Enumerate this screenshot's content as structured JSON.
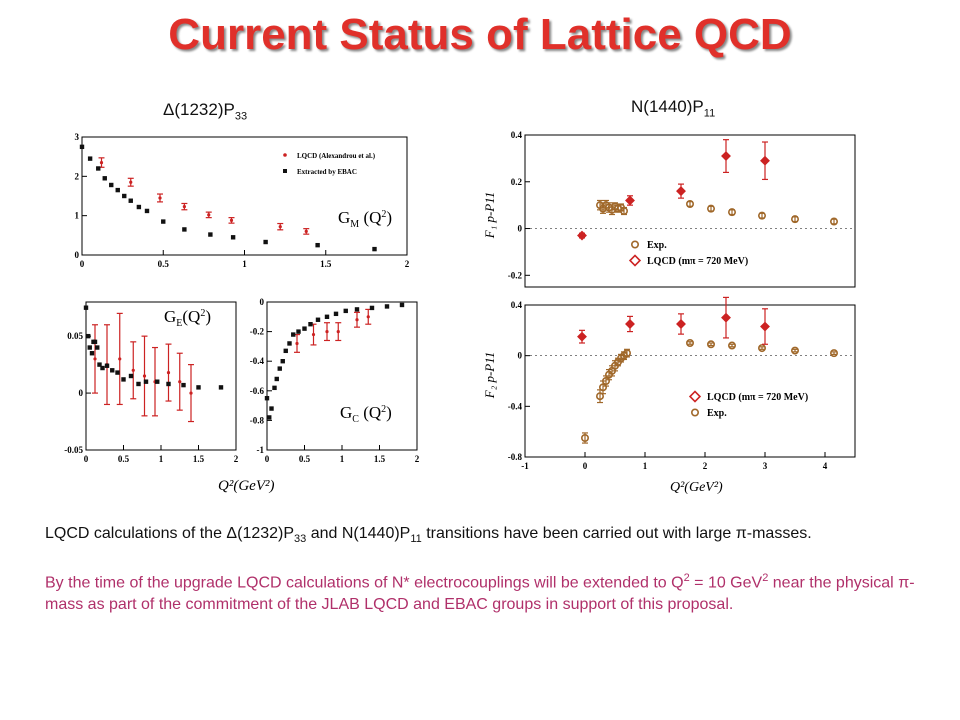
{
  "slide": {
    "title": "Current Status of Lattice QCD",
    "left_heading": "Δ(1232)P",
    "left_heading_sub": "33",
    "right_heading": "N(1440)P",
    "right_heading_sub": "11",
    "left_xlabel": "Q²(GeV²)",
    "right_xlabel": "Q²(GeV²)",
    "p1_a": "LQCD calculations of the ",
    "p1_b": "Δ(1232)P",
    "p1_b_sub": "33",
    "p1_c": " and N(1440)P",
    "p1_c_sub": "11",
    "p1_d": " transitions have been carried out with large ",
    "p1_e": "π",
    "p1_f": "-masses.",
    "p2_a": "By the time of the upgrade LQCD calculations of N* electrocouplings will be extended to Q",
    "p2_a_sup": "2",
    "p2_b": " = 10 GeV",
    "p2_b_sup": "2",
    "p2_c": " near the physical ",
    "p2_d": "π",
    "p2_e": "-mass as part of the commitment of the JLAB LQCD and EBAC groups in support of this proposal."
  },
  "colors": {
    "title": "#e0302a",
    "lqcd": "#cc2222",
    "ebac": "#111111",
    "exp": "#a0682a",
    "p2": "#b0306a"
  },
  "chart_data": [
    {
      "id": "gm",
      "type": "scatter",
      "label": "G_M (Q²)",
      "xlim": [
        0,
        2
      ],
      "ylim": [
        0,
        3
      ],
      "xticks": [
        "0",
        "0.5",
        "1",
        "1.5",
        "2"
      ],
      "yticks": [
        "0",
        "1",
        "2",
        "3"
      ],
      "legend": [
        "LQCD (Alexandrou et al.)",
        "Extracted by EBAC"
      ],
      "series": [
        {
          "name": "LQCD (Alexandrou et al.)",
          "points": [
            [
              0.12,
              2.35,
              0.12
            ],
            [
              0.3,
              1.85,
              0.1
            ],
            [
              0.48,
              1.45,
              0.1
            ],
            [
              0.63,
              1.23,
              0.08
            ],
            [
              0.78,
              1.02,
              0.07
            ],
            [
              0.92,
              0.88,
              0.07
            ],
            [
              1.22,
              0.72,
              0.08
            ],
            [
              1.38,
              0.6,
              0.07
            ]
          ]
        },
        {
          "name": "Extracted by EBAC",
          "points": [
            [
              0.0,
              2.75
            ],
            [
              0.05,
              2.45
            ],
            [
              0.1,
              2.2
            ],
            [
              0.14,
              1.95
            ],
            [
              0.18,
              1.78
            ],
            [
              0.22,
              1.65
            ],
            [
              0.26,
              1.5
            ],
            [
              0.3,
              1.38
            ],
            [
              0.35,
              1.22
            ],
            [
              0.4,
              1.12
            ],
            [
              0.5,
              0.85
            ],
            [
              0.63,
              0.65
            ],
            [
              0.79,
              0.52
            ],
            [
              0.93,
              0.45
            ],
            [
              1.13,
              0.33
            ],
            [
              1.45,
              0.25
            ],
            [
              1.8,
              0.15
            ]
          ]
        }
      ]
    },
    {
      "id": "ge",
      "type": "scatter",
      "label": "G_E (Q²)",
      "xlim": [
        0,
        2
      ],
      "ylim": [
        -0.05,
        0.08
      ],
      "xticks": [
        "0",
        "0.5",
        "1",
        "1.5",
        "2"
      ],
      "yticks": [
        "-0.05",
        "0",
        "0.05"
      ],
      "series": [
        {
          "name": "LQCD",
          "points": [
            [
              0.12,
              0.03,
              0.03
            ],
            [
              0.28,
              0.025,
              0.035
            ],
            [
              0.45,
              0.03,
              0.04
            ],
            [
              0.63,
              0.02,
              0.025
            ],
            [
              0.78,
              0.015,
              0.035
            ],
            [
              0.92,
              0.01,
              0.03
            ],
            [
              1.1,
              0.018,
              0.025
            ],
            [
              1.25,
              0.01,
              0.025
            ],
            [
              1.4,
              0.0,
              0.025
            ]
          ]
        },
        {
          "name": "EBAC",
          "points": [
            [
              0.0,
              0.075
            ],
            [
              0.03,
              0.05
            ],
            [
              0.05,
              0.04
            ],
            [
              0.08,
              0.035
            ],
            [
              0.1,
              0.045
            ],
            [
              0.12,
              0.045
            ],
            [
              0.15,
              0.04
            ],
            [
              0.18,
              0.025
            ],
            [
              0.22,
              0.022
            ],
            [
              0.28,
              0.024
            ],
            [
              0.35,
              0.02
            ],
            [
              0.42,
              0.018
            ],
            [
              0.5,
              0.012
            ],
            [
              0.6,
              0.015
            ],
            [
              0.7,
              0.008
            ],
            [
              0.8,
              0.01
            ],
            [
              0.95,
              0.01
            ],
            [
              1.1,
              0.008
            ],
            [
              1.3,
              0.007
            ],
            [
              1.5,
              0.005
            ],
            [
              1.8,
              0.005
            ]
          ]
        }
      ]
    },
    {
      "id": "gc",
      "type": "scatter",
      "label": "G_C (Q²)",
      "xlim": [
        0,
        2
      ],
      "ylim": [
        -1,
        0
      ],
      "xticks": [
        "0",
        "0.5",
        "1",
        "1.5",
        "2"
      ],
      "yticks": [
        "-1",
        "-0.8",
        "-0.6",
        "-0.4",
        "-0.2",
        "0"
      ],
      "series": [
        {
          "name": "LQCD",
          "points": [
            [
              0.4,
              -0.28,
              0.06
            ],
            [
              0.62,
              -0.22,
              0.07
            ],
            [
              0.8,
              -0.2,
              0.06
            ],
            [
              0.95,
              -0.2,
              0.06
            ],
            [
              1.2,
              -0.12,
              0.05
            ],
            [
              1.35,
              -0.1,
              0.05
            ]
          ]
        },
        {
          "name": "EBAC",
          "points": [
            [
              0.0,
              -0.65
            ],
            [
              0.03,
              -0.78
            ],
            [
              0.06,
              -0.72
            ],
            [
              0.1,
              -0.58
            ],
            [
              0.13,
              -0.52
            ],
            [
              0.17,
              -0.45
            ],
            [
              0.21,
              -0.4
            ],
            [
              0.25,
              -0.33
            ],
            [
              0.3,
              -0.28
            ],
            [
              0.35,
              -0.22
            ],
            [
              0.42,
              -0.2
            ],
            [
              0.5,
              -0.18
            ],
            [
              0.58,
              -0.15
            ],
            [
              0.68,
              -0.12
            ],
            [
              0.8,
              -0.1
            ],
            [
              0.92,
              -0.08
            ],
            [
              1.05,
              -0.06
            ],
            [
              1.2,
              -0.05
            ],
            [
              1.4,
              -0.04
            ],
            [
              1.6,
              -0.03
            ],
            [
              1.8,
              -0.02
            ]
          ]
        }
      ]
    },
    {
      "id": "f1",
      "type": "scatter",
      "ylabel": "F1 p-P11",
      "xlim": [
        -1,
        4.5
      ],
      "ylim": [
        -0.25,
        0.4
      ],
      "xticks": [],
      "yticks": [
        "-0.2",
        "0",
        "0.2",
        "0.4"
      ],
      "legend": [
        "Exp.",
        "LQCD (mπ = 720 MeV)"
      ],
      "series": [
        {
          "name": "Exp.",
          "points": [
            [
              0.25,
              0.1,
              0.02
            ],
            [
              0.3,
              0.085,
              0.02
            ],
            [
              0.35,
              0.1,
              0.02
            ],
            [
              0.4,
              0.09,
              0.02
            ],
            [
              0.45,
              0.08,
              0.02
            ],
            [
              0.5,
              0.095,
              0.015
            ],
            [
              0.55,
              0.085,
              0.015
            ],
            [
              0.6,
              0.09,
              0.015
            ],
            [
              0.65,
              0.075,
              0.015
            ],
            [
              1.75,
              0.105,
              0.01
            ],
            [
              2.1,
              0.085,
              0.01
            ],
            [
              2.45,
              0.07,
              0.01
            ],
            [
              2.95,
              0.055,
              0.01
            ],
            [
              3.5,
              0.04,
              0.01
            ],
            [
              4.15,
              0.03,
              0.01
            ]
          ]
        },
        {
          "name": "LQCD (mπ = 720 MeV)",
          "points": [
            [
              -0.05,
              -0.03,
              0.01
            ],
            [
              0.75,
              0.12,
              0.02
            ],
            [
              1.6,
              0.16,
              0.03
            ],
            [
              2.35,
              0.31,
              0.07
            ],
            [
              3.0,
              0.29,
              0.08
            ]
          ]
        }
      ]
    },
    {
      "id": "f2",
      "type": "scatter",
      "ylabel": "F2 p-P11",
      "xlim": [
        -1,
        4.5
      ],
      "ylim": [
        -0.8,
        0.4
      ],
      "xticks": [
        "-1",
        "0",
        "1",
        "2",
        "3",
        "4"
      ],
      "yticks": [
        "-0.8",
        "-0.4",
        "0",
        "0.4"
      ],
      "legend": [
        "LQCD (mπ = 720 MeV)",
        "Exp."
      ],
      "series": [
        {
          "name": "Exp.",
          "points": [
            [
              0.0,
              -0.65,
              0.04
            ],
            [
              0.25,
              -0.32,
              0.05
            ],
            [
              0.3,
              -0.25,
              0.05
            ],
            [
              0.35,
              -0.2,
              0.04
            ],
            [
              0.4,
              -0.15,
              0.04
            ],
            [
              0.45,
              -0.12,
              0.04
            ],
            [
              0.5,
              -0.08,
              0.04
            ],
            [
              0.55,
              -0.05,
              0.03
            ],
            [
              0.6,
              -0.02,
              0.03
            ],
            [
              0.65,
              0.0,
              0.03
            ],
            [
              0.7,
              0.02,
              0.03
            ],
            [
              1.75,
              0.1,
              0.01
            ],
            [
              2.1,
              0.09,
              0.01
            ],
            [
              2.45,
              0.08,
              0.01
            ],
            [
              2.95,
              0.06,
              0.01
            ],
            [
              3.5,
              0.04,
              0.01
            ],
            [
              4.15,
              0.02,
              0.01
            ]
          ]
        },
        {
          "name": "LQCD (mπ = 720 MeV)",
          "points": [
            [
              -0.05,
              0.15,
              0.05
            ],
            [
              0.75,
              0.25,
              0.06
            ],
            [
              1.6,
              0.25,
              0.08
            ],
            [
              2.35,
              0.3,
              0.16
            ],
            [
              3.0,
              0.23,
              0.14
            ]
          ]
        }
      ]
    }
  ]
}
